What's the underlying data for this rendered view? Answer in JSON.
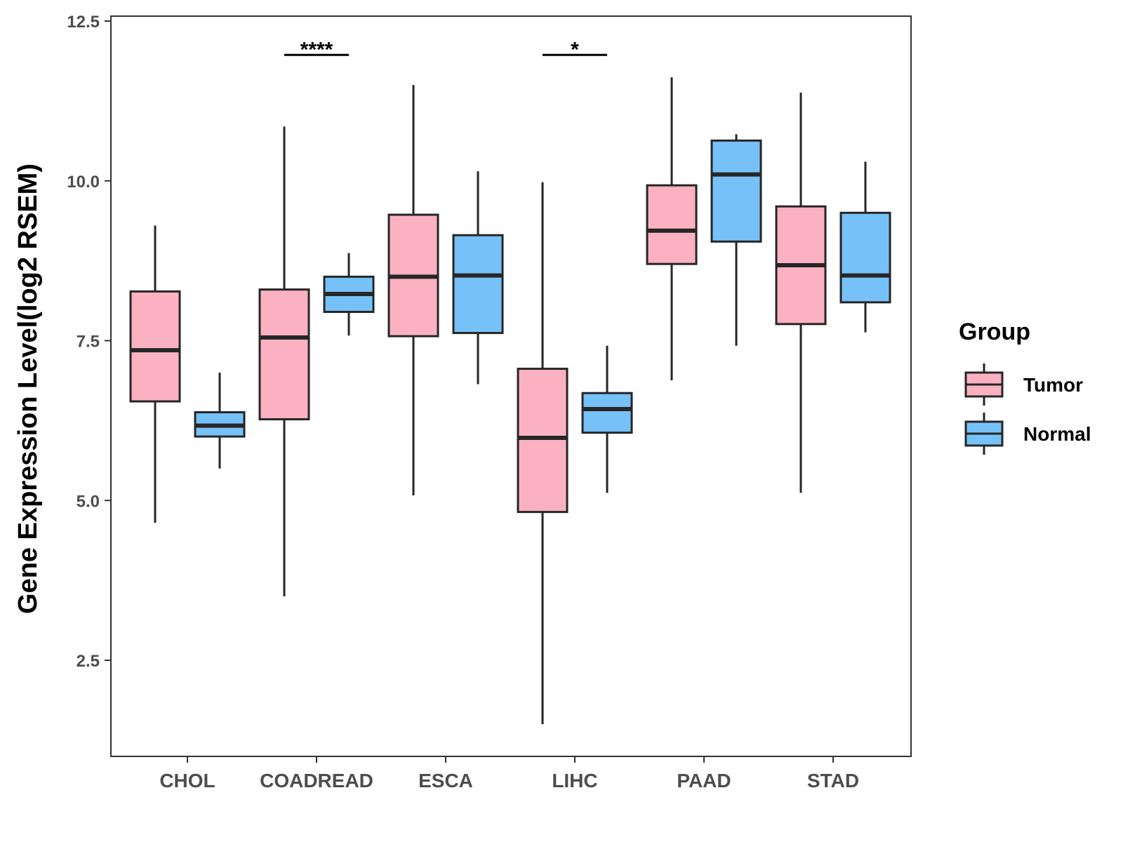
{
  "chart_data": {
    "type": "boxplot",
    "title": "",
    "xlabel": "",
    "ylabel": "Gene Expression Level(log2 RSEM)",
    "ylim": [
      1.0,
      12.6
    ],
    "yticks": [
      2.5,
      5.0,
      7.5,
      10.0,
      12.5
    ],
    "ytick_labels": [
      "2.5",
      "5.0",
      "7.5",
      "10.0",
      "12.5"
    ],
    "grid": false,
    "legend_position": "right",
    "categories": [
      "CHOL",
      "COADREAD",
      "ESCA",
      "LIHC",
      "PAAD",
      "STAD"
    ],
    "legend": {
      "title": "Group",
      "entries": [
        {
          "name": "Tumor",
          "color": "#FBB1C1"
        },
        {
          "name": "Normal",
          "color": "#76C1F8"
        }
      ]
    },
    "series": [
      {
        "name": "Tumor",
        "color": "#FBB1C1",
        "boxes": [
          {
            "min": 4.65,
            "q1": 6.55,
            "median": 7.35,
            "q3": 8.27,
            "max": 9.3
          },
          {
            "min": 3.5,
            "q1": 6.27,
            "median": 7.55,
            "q3": 8.3,
            "max": 10.85
          },
          {
            "min": 5.08,
            "q1": 7.57,
            "median": 8.5,
            "q3": 9.47,
            "max": 11.5
          },
          {
            "min": 1.5,
            "q1": 4.82,
            "median": 5.98,
            "q3": 7.06,
            "max": 9.98
          },
          {
            "min": 6.88,
            "q1": 8.7,
            "median": 9.22,
            "q3": 9.93,
            "max": 11.62
          },
          {
            "min": 5.12,
            "q1": 7.76,
            "median": 8.68,
            "q3": 9.6,
            "max": 11.38
          }
        ]
      },
      {
        "name": "Normal",
        "color": "#76C1F8",
        "boxes": [
          {
            "min": 5.5,
            "q1": 6.0,
            "median": 6.17,
            "q3": 6.38,
            "max": 7.0
          },
          {
            "min": 7.58,
            "q1": 7.95,
            "median": 8.23,
            "q3": 8.5,
            "max": 8.87
          },
          {
            "min": 6.82,
            "q1": 7.62,
            "median": 8.52,
            "q3": 9.15,
            "max": 10.15
          },
          {
            "min": 5.12,
            "q1": 6.06,
            "median": 6.43,
            "q3": 6.68,
            "max": 7.42
          },
          {
            "min": 7.42,
            "q1": 9.05,
            "median": 10.1,
            "q3": 10.63,
            "max": 10.73
          },
          {
            "min": 7.63,
            "q1": 8.1,
            "median": 8.52,
            "q3": 9.5,
            "max": 10.3
          }
        ]
      }
    ],
    "annotations": [
      {
        "category": "COADREAD",
        "label": "****",
        "y": 11.97
      },
      {
        "category": "LIHC",
        "label": "*",
        "y": 11.97
      }
    ]
  }
}
